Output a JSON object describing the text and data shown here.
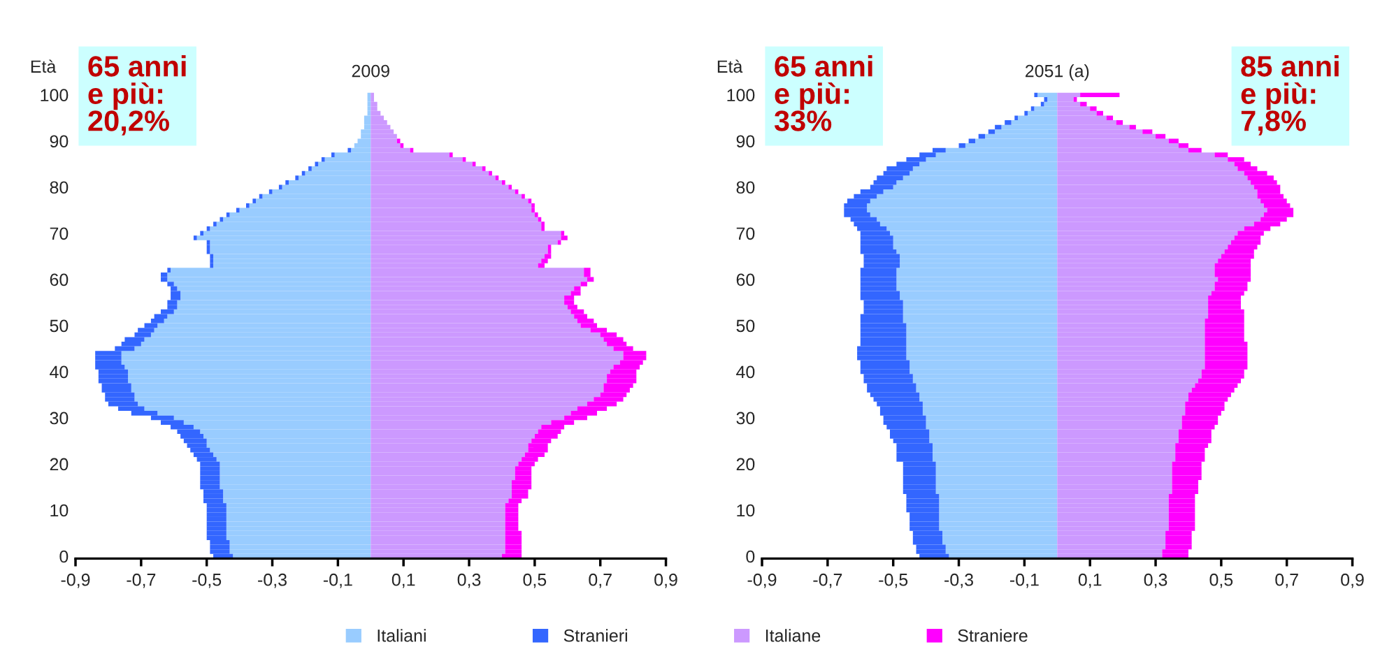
{
  "chart_data": [
    {
      "type": "bar",
      "orientation": "horizontal",
      "stacked": true,
      "title": "2009",
      "ylabel": "Età",
      "legend": "bottom",
      "categories": [
        "100",
        null,
        null,
        null,
        null,
        null,
        null,
        null,
        null,
        null,
        "90",
        null,
        null,
        null,
        null,
        null,
        null,
        null,
        null,
        null,
        "80",
        null,
        null,
        null,
        null,
        null,
        null,
        null,
        null,
        null,
        "70",
        null,
        null,
        null,
        null,
        null,
        null,
        null,
        null,
        null,
        "60",
        null,
        null,
        null,
        null,
        null,
        null,
        null,
        null,
        null,
        "50",
        null,
        null,
        null,
        null,
        null,
        null,
        null,
        null,
        null,
        "40",
        null,
        null,
        null,
        null,
        null,
        null,
        null,
        null,
        null,
        "30",
        null,
        null,
        null,
        null,
        null,
        null,
        null,
        null,
        null,
        "20",
        null,
        null,
        null,
        null,
        null,
        null,
        null,
        null,
        null,
        "10",
        null,
        null,
        null,
        null,
        null,
        null,
        null,
        null,
        null,
        "0"
      ],
      "xlim": [
        -0.9,
        0.9
      ],
      "xticks": [
        {
          "value": -0.9,
          "label": "-0,9"
        },
        {
          "value": -0.7,
          "label": "-0,7"
        },
        {
          "value": -0.5,
          "label": "-0,5"
        },
        {
          "value": -0.3,
          "label": "-0,3"
        },
        {
          "value": -0.1,
          "label": "-0,1"
        },
        {
          "value": 0.1,
          "label": "0,1"
        },
        {
          "value": 0.3,
          "label": "0,3"
        },
        {
          "value": 0.5,
          "label": "0,5"
        },
        {
          "value": 0.7,
          "label": "0,7"
        },
        {
          "value": 0.9,
          "label": "0,9"
        }
      ],
      "annotations": [
        "65 anni\ne più:\n20,2%"
      ],
      "series": [
        {
          "name": "Italiani",
          "color": "#99ccff",
          "values": [
            -0.01,
            -0.01,
            -0.01,
            -0.01,
            -0.01,
            -0.02,
            -0.02,
            -0.02,
            -0.03,
            -0.03,
            -0.04,
            -0.05,
            -0.06,
            -0.11,
            -0.14,
            -0.16,
            -0.18,
            -0.2,
            -0.22,
            -0.25,
            -0.27,
            -0.3,
            -0.33,
            -0.35,
            -0.37,
            -0.4,
            -0.43,
            -0.45,
            -0.47,
            -0.49,
            -0.51,
            -0.53,
            -0.49,
            -0.49,
            -0.49,
            -0.48,
            -0.48,
            -0.48,
            -0.61,
            -0.62,
            -0.62,
            -0.6,
            -0.59,
            -0.58,
            -0.58,
            -0.59,
            -0.59,
            -0.6,
            -0.62,
            -0.63,
            -0.65,
            -0.66,
            -0.67,
            -0.69,
            -0.7,
            -0.72,
            -0.76,
            -0.76,
            -0.76,
            -0.75,
            -0.74,
            -0.74,
            -0.74,
            -0.73,
            -0.73,
            -0.72,
            -0.72,
            -0.71,
            -0.69,
            -0.65,
            -0.6,
            -0.57,
            -0.54,
            -0.52,
            -0.51,
            -0.5,
            -0.5,
            -0.49,
            -0.48,
            -0.47,
            -0.46,
            -0.46,
            -0.46,
            -0.46,
            -0.46,
            -0.46,
            -0.45,
            -0.45,
            -0.45,
            -0.44,
            -0.44,
            -0.44,
            -0.44,
            -0.44,
            -0.44,
            -0.44,
            -0.44,
            -0.43,
            -0.43,
            -0.43,
            -0.42
          ]
        },
        {
          "name": "Stranieri",
          "color": "#3366ff",
          "values": [
            0,
            0,
            0,
            0,
            0,
            0,
            0,
            0,
            0,
            0,
            0,
            0,
            -0.01,
            -0.01,
            -0.01,
            -0.01,
            -0.01,
            -0.01,
            -0.01,
            -0.01,
            -0.01,
            -0.01,
            -0.01,
            -0.01,
            -0.01,
            -0.01,
            -0.01,
            -0.01,
            -0.01,
            -0.01,
            -0.01,
            -0.01,
            -0.01,
            -0.01,
            -0.01,
            -0.01,
            -0.01,
            -0.01,
            -0.01,
            -0.02,
            -0.02,
            -0.02,
            -0.02,
            -0.03,
            -0.03,
            -0.03,
            -0.03,
            -0.04,
            -0.04,
            -0.04,
            -0.04,
            -0.05,
            -0.05,
            -0.06,
            -0.06,
            -0.06,
            -0.08,
            -0.08,
            -0.08,
            -0.09,
            -0.09,
            -0.09,
            -0.09,
            -0.09,
            -0.09,
            -0.09,
            -0.09,
            -0.09,
            -0.08,
            -0.08,
            -0.07,
            -0.07,
            -0.07,
            -0.07,
            -0.07,
            -0.07,
            -0.06,
            -0.06,
            -0.06,
            -0.06,
            -0.06,
            -0.06,
            -0.06,
            -0.06,
            -0.06,
            -0.06,
            -0.06,
            -0.06,
            -0.06,
            -0.06,
            -0.06,
            -0.06,
            -0.06,
            -0.06,
            -0.06,
            -0.06,
            -0.06,
            -0.06,
            -0.06,
            -0.06,
            -0.06
          ]
        },
        {
          "name": "Italiane",
          "color": "#cc99ff",
          "values": [
            0.01,
            0.01,
            0.02,
            0.02,
            0.03,
            0.04,
            0.05,
            0.06,
            0.07,
            0.08,
            0.08,
            0.09,
            0.12,
            0.24,
            0.28,
            0.31,
            0.34,
            0.36,
            0.38,
            0.4,
            0.42,
            0.44,
            0.46,
            0.48,
            0.49,
            0.49,
            0.5,
            0.51,
            0.52,
            0.52,
            0.58,
            0.58,
            0.57,
            0.54,
            0.54,
            0.53,
            0.52,
            0.51,
            0.65,
            0.65,
            0.66,
            0.64,
            0.62,
            0.61,
            0.59,
            0.59,
            0.6,
            0.61,
            0.62,
            0.63,
            0.64,
            0.67,
            0.7,
            0.71,
            0.72,
            0.74,
            0.77,
            0.77,
            0.76,
            0.74,
            0.73,
            0.72,
            0.72,
            0.71,
            0.71,
            0.7,
            0.68,
            0.66,
            0.63,
            0.61,
            0.59,
            0.55,
            0.52,
            0.51,
            0.5,
            0.49,
            0.48,
            0.48,
            0.47,
            0.46,
            0.45,
            0.44,
            0.44,
            0.44,
            0.43,
            0.43,
            0.43,
            0.43,
            0.42,
            0.41,
            0.41,
            0.41,
            0.41,
            0.41,
            0.41,
            0.41,
            0.41,
            0.41,
            0.41,
            0.41,
            0.4
          ]
        },
        {
          "name": "Straniere",
          "color": "#ff00ff",
          "values": [
            0,
            0,
            0,
            0,
            0,
            0,
            0,
            0,
            0,
            0,
            0.01,
            0.01,
            0.01,
            0.01,
            0.01,
            0.01,
            0.01,
            0.01,
            0.01,
            0.01,
            0.01,
            0.01,
            0.01,
            0.01,
            0.01,
            0.01,
            0.01,
            0.01,
            0.01,
            0.01,
            0.01,
            0.02,
            0.01,
            0.01,
            0.01,
            0.02,
            0.02,
            0.02,
            0.02,
            0.02,
            0.02,
            0.02,
            0.02,
            0.03,
            0.03,
            0.03,
            0.03,
            0.04,
            0.04,
            0.05,
            0.05,
            0.05,
            0.05,
            0.06,
            0.06,
            0.06,
            0.07,
            0.07,
            0.07,
            0.08,
            0.08,
            0.09,
            0.09,
            0.09,
            0.08,
            0.08,
            0.09,
            0.09,
            0.09,
            0.08,
            0.07,
            0.07,
            0.07,
            0.07,
            0.07,
            0.06,
            0.06,
            0.06,
            0.06,
            0.05,
            0.05,
            0.05,
            0.05,
            0.05,
            0.06,
            0.06,
            0.05,
            0.05,
            0.04,
            0.04,
            0.04,
            0.04,
            0.04,
            0.04,
            0.04,
            0.05,
            0.05,
            0.05,
            0.05,
            0.05,
            0.06
          ]
        }
      ]
    },
    {
      "type": "bar",
      "orientation": "horizontal",
      "stacked": true,
      "title": "2051 (a)",
      "ylabel": "Età",
      "categories": [
        "100",
        null,
        null,
        null,
        null,
        null,
        null,
        null,
        null,
        null,
        "90",
        null,
        null,
        null,
        null,
        null,
        null,
        null,
        null,
        null,
        "80",
        null,
        null,
        null,
        null,
        null,
        null,
        null,
        null,
        null,
        "70",
        null,
        null,
        null,
        null,
        null,
        null,
        null,
        null,
        null,
        "60",
        null,
        null,
        null,
        null,
        null,
        null,
        null,
        null,
        null,
        "50",
        null,
        null,
        null,
        null,
        null,
        null,
        null,
        null,
        null,
        "40",
        null,
        null,
        null,
        null,
        null,
        null,
        null,
        null,
        null,
        "30",
        null,
        null,
        null,
        null,
        null,
        null,
        null,
        null,
        null,
        "20",
        null,
        null,
        null,
        null,
        null,
        null,
        null,
        null,
        null,
        "10",
        null,
        null,
        null,
        null,
        null,
        null,
        null,
        null,
        null,
        "0"
      ],
      "xlim": [
        -0.9,
        0.9
      ],
      "xticks": [
        {
          "value": -0.9,
          "label": "-0,9"
        },
        {
          "value": -0.7,
          "label": "-0,7"
        },
        {
          "value": -0.5,
          "label": "-0,5"
        },
        {
          "value": -0.3,
          "label": "-0,3"
        },
        {
          "value": -0.1,
          "label": "-0,1"
        },
        {
          "value": 0.1,
          "label": "0,1"
        },
        {
          "value": 0.3,
          "label": "0,3"
        },
        {
          "value": 0.5,
          "label": "0,5"
        },
        {
          "value": 0.7,
          "label": "0,7"
        },
        {
          "value": 0.9,
          "label": "0,9"
        }
      ],
      "annotations": [
        "65 anni\ne più:\n33%",
        "85 anni\ne più:\n7,8%"
      ],
      "series": [
        {
          "color": "#99ccff",
          "values": [
            -0.06,
            -0.03,
            -0.04,
            -0.07,
            -0.09,
            -0.12,
            -0.14,
            -0.17,
            -0.19,
            -0.22,
            -0.25,
            -0.28,
            -0.34,
            -0.37,
            -0.4,
            -0.42,
            -0.44,
            -0.45,
            -0.47,
            -0.49,
            -0.5,
            -0.53,
            -0.55,
            -0.57,
            -0.58,
            -0.58,
            -0.57,
            -0.55,
            -0.54,
            -0.52,
            -0.51,
            -0.5,
            -0.5,
            -0.5,
            -0.49,
            -0.48,
            -0.48,
            -0.48,
            -0.49,
            -0.49,
            -0.49,
            -0.49,
            -0.49,
            -0.48,
            -0.48,
            -0.47,
            -0.47,
            -0.47,
            -0.47,
            -0.47,
            -0.46,
            -0.46,
            -0.46,
            -0.46,
            -0.46,
            -0.46,
            -0.46,
            -0.46,
            -0.45,
            -0.45,
            -0.45,
            -0.44,
            -0.44,
            -0.43,
            -0.43,
            -0.42,
            -0.42,
            -0.41,
            -0.41,
            -0.41,
            -0.4,
            -0.4,
            -0.4,
            -0.39,
            -0.39,
            -0.39,
            -0.38,
            -0.38,
            -0.38,
            -0.38,
            -0.37,
            -0.37,
            -0.37,
            -0.37,
            -0.37,
            -0.37,
            -0.37,
            -0.36,
            -0.36,
            -0.36,
            -0.36,
            -0.36,
            -0.36,
            -0.36,
            -0.36,
            -0.35,
            -0.35,
            -0.35,
            -0.34,
            -0.34,
            -0.33
          ]
        },
        {
          "color": "#3366ff",
          "values": [
            -0.01,
            -0.01,
            -0.01,
            -0.01,
            -0.01,
            -0.01,
            -0.02,
            -0.02,
            -0.02,
            -0.02,
            -0.02,
            -0.02,
            -0.04,
            -0.05,
            -0.06,
            -0.07,
            -0.08,
            -0.08,
            -0.08,
            -0.07,
            -0.07,
            -0.07,
            -0.07,
            -0.07,
            -0.07,
            -0.07,
            -0.08,
            -0.08,
            -0.08,
            -0.09,
            -0.09,
            -0.1,
            -0.1,
            -0.1,
            -0.11,
            -0.11,
            -0.11,
            -0.11,
            -0.11,
            -0.11,
            -0.11,
            -0.11,
            -0.11,
            -0.12,
            -0.12,
            -0.12,
            -0.12,
            -0.12,
            -0.13,
            -0.13,
            -0.14,
            -0.14,
            -0.14,
            -0.14,
            -0.14,
            -0.15,
            -0.15,
            -0.15,
            -0.15,
            -0.15,
            -0.15,
            -0.15,
            -0.15,
            -0.15,
            -0.15,
            -0.15,
            -0.14,
            -0.14,
            -0.13,
            -0.13,
            -0.13,
            -0.13,
            -0.12,
            -0.12,
            -0.12,
            -0.11,
            -0.11,
            -0.11,
            -0.11,
            -0.11,
            -0.1,
            -0.1,
            -0.1,
            -0.1,
            -0.1,
            -0.1,
            -0.1,
            -0.1,
            -0.1,
            -0.1,
            -0.1,
            -0.09,
            -0.09,
            -0.09,
            -0.09,
            -0.09,
            -0.09,
            -0.09,
            -0.09,
            -0.09,
            -0.09
          ]
        },
        {
          "color": "#cc99ff",
          "values": [
            0.07,
            0.05,
            0.07,
            0.1,
            0.12,
            0.15,
            0.18,
            0.22,
            0.26,
            0.3,
            0.34,
            0.37,
            0.4,
            0.48,
            0.52,
            0.54,
            0.55,
            0.57,
            0.58,
            0.59,
            0.6,
            0.61,
            0.61,
            0.62,
            0.63,
            0.64,
            0.63,
            0.62,
            0.6,
            0.57,
            0.55,
            0.54,
            0.53,
            0.52,
            0.51,
            0.5,
            0.49,
            0.48,
            0.48,
            0.48,
            0.49,
            0.48,
            0.48,
            0.47,
            0.46,
            0.46,
            0.46,
            0.46,
            0.46,
            0.45,
            0.45,
            0.45,
            0.45,
            0.45,
            0.45,
            0.45,
            0.45,
            0.45,
            0.45,
            0.45,
            0.44,
            0.44,
            0.43,
            0.42,
            0.41,
            0.4,
            0.4,
            0.39,
            0.39,
            0.39,
            0.38,
            0.38,
            0.38,
            0.37,
            0.37,
            0.37,
            0.36,
            0.36,
            0.36,
            0.36,
            0.35,
            0.35,
            0.35,
            0.35,
            0.35,
            0.35,
            0.35,
            0.34,
            0.34,
            0.34,
            0.34,
            0.34,
            0.34,
            0.34,
            0.34,
            0.33,
            0.33,
            0.33,
            0.33,
            0.32,
            0.32
          ]
        },
        {
          "color": "#ff00ff",
          "values": [
            0.12,
            0.01,
            0.02,
            0.02,
            0.02,
            0.02,
            0.02,
            0.02,
            0.03,
            0.03,
            0.03,
            0.03,
            0.04,
            0.04,
            0.05,
            0.05,
            0.06,
            0.07,
            0.08,
            0.08,
            0.08,
            0.07,
            0.08,
            0.08,
            0.08,
            0.08,
            0.09,
            0.08,
            0.08,
            0.08,
            0.08,
            0.08,
            0.09,
            0.09,
            0.09,
            0.1,
            0.1,
            0.11,
            0.11,
            0.11,
            0.1,
            0.1,
            0.1,
            0.1,
            0.1,
            0.1,
            0.1,
            0.11,
            0.11,
            0.12,
            0.12,
            0.12,
            0.12,
            0.12,
            0.13,
            0.13,
            0.13,
            0.13,
            0.13,
            0.13,
            0.13,
            0.13,
            0.13,
            0.13,
            0.13,
            0.13,
            0.12,
            0.12,
            0.12,
            0.11,
            0.11,
            0.11,
            0.1,
            0.1,
            0.1,
            0.1,
            0.1,
            0.09,
            0.09,
            0.09,
            0.09,
            0.09,
            0.09,
            0.09,
            0.08,
            0.08,
            0.08,
            0.08,
            0.08,
            0.08,
            0.08,
            0.08,
            0.08,
            0.08,
            0.08,
            0.08,
            0.08,
            0.08,
            0.08,
            0.08,
            0.08
          ]
        }
      ]
    }
  ]
}
